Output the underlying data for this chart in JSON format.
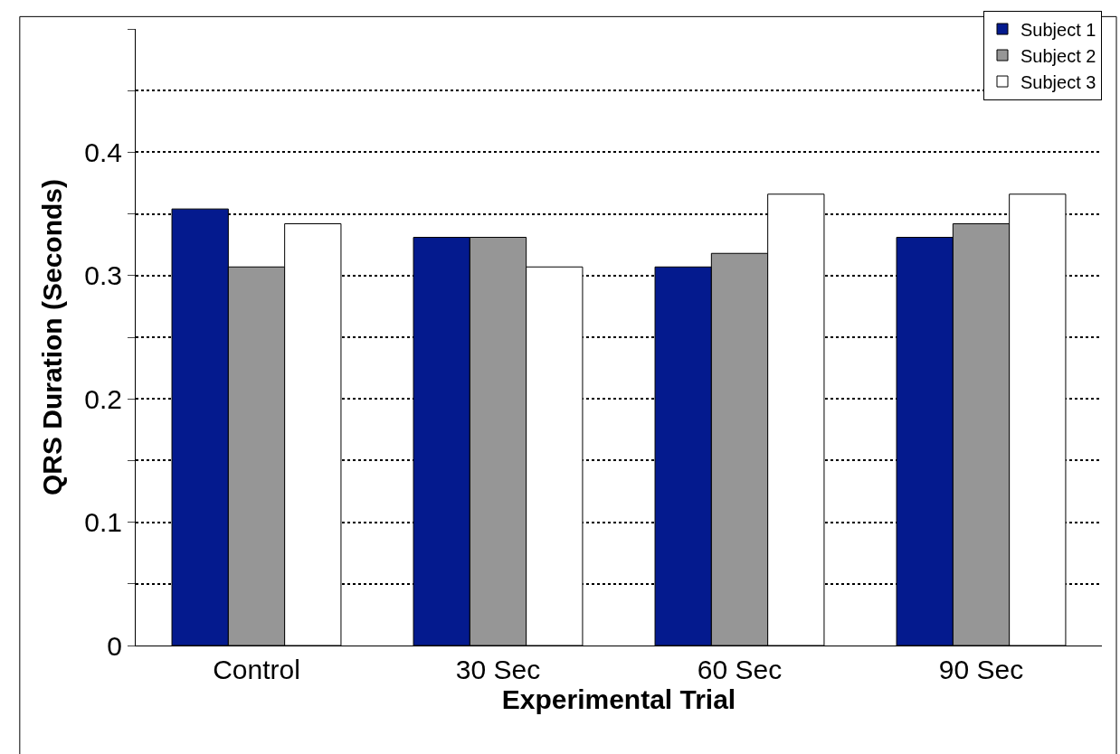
{
  "chart_data": {
    "type": "bar",
    "xlabel": "Experimental Trial",
    "ylabel": "QRS Duration (Seconds)",
    "categories": [
      "Control",
      "30 Sec",
      "60 Sec",
      "90 Sec"
    ],
    "series": [
      {
        "name": "Subject 1",
        "color": "#041a8e",
        "values": [
          0.354,
          0.331,
          0.307,
          0.331
        ]
      },
      {
        "name": "Subject 2",
        "color": "#969696",
        "values": [
          0.307,
          0.331,
          0.318,
          0.342
        ]
      },
      {
        "name": "Subject 3",
        "color": "#ffffff",
        "values": [
          0.342,
          0.307,
          0.366,
          0.366
        ]
      }
    ],
    "ylim": [
      0,
      0.5
    ],
    "yticks": [
      0,
      {
        "value": 0.05,
        "label": null
      },
      0.1,
      {
        "value": 0.15,
        "label": null
      },
      0.2,
      {
        "value": 0.25,
        "label": null
      },
      0.3,
      {
        "value": 0.35,
        "label": null
      },
      0.4,
      {
        "value": 0.45,
        "label": null
      },
      {
        "value": 0.5,
        "label": null
      }
    ],
    "grid": "y",
    "legend": "top right"
  }
}
